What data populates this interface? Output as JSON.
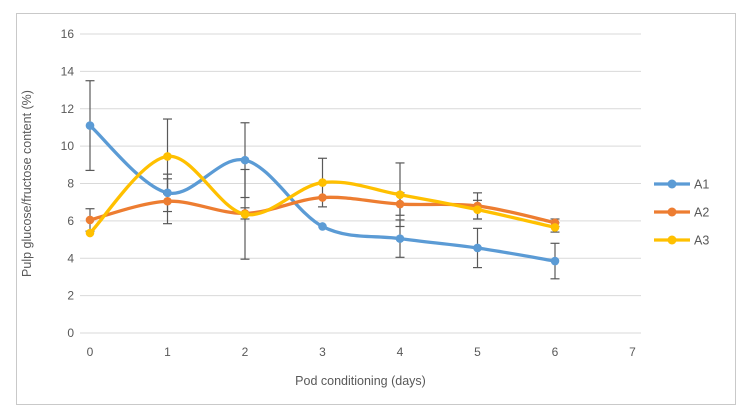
{
  "figure": {
    "border_color": "#C9C9C9",
    "background": "#FFFFFF"
  },
  "chart_data": {
    "type": "line",
    "title": "",
    "xlabel": "Pod conditioning (days)",
    "ylabel": "Pulp glucose/fructose content (%)",
    "x": [
      0,
      1,
      2,
      3,
      4,
      5,
      6
    ],
    "xlim": [
      0,
      7
    ],
    "ylim": [
      0,
      16
    ],
    "xticks": [
      0,
      1,
      2,
      3,
      4,
      5,
      6,
      7
    ],
    "yticks": [
      0,
      2,
      4,
      6,
      8,
      10,
      12,
      14,
      16
    ],
    "grid": "horizontal-only",
    "gridline_color": "#D9D9D9",
    "axis_text_color": "#595959",
    "error_bar_color": "#595959",
    "legend_position": "right",
    "smooth_lines": true,
    "series": [
      {
        "name": "A1",
        "color": "#5B9BD5",
        "values": [
          11.1,
          7.5,
          9.25,
          5.7,
          5.05,
          4.55,
          3.85
        ],
        "errors": [
          2.4,
          1.0,
          2.0,
          0,
          1.0,
          1.05,
          0.95
        ]
      },
      {
        "name": "A2",
        "color": "#ED7D31",
        "values": [
          6.05,
          7.05,
          6.4,
          7.25,
          6.9,
          6.8,
          5.9
        ],
        "errors": [
          0.6,
          1.2,
          0.3,
          0,
          0.6,
          0.7,
          0.2
        ]
      },
      {
        "name": "A3",
        "color": "#FFC000",
        "values": [
          5.35,
          9.45,
          6.35,
          8.05,
          7.4,
          6.6,
          5.65
        ],
        "errors": [
          0,
          2.0,
          2.4,
          1.3,
          1.7,
          0.5,
          0.25
        ]
      }
    ]
  }
}
